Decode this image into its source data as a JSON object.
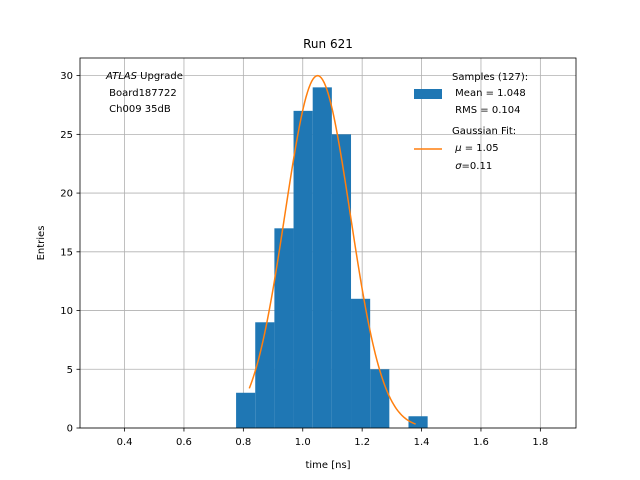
{
  "chart_data": {
    "type": "bar",
    "title": "Run 621",
    "xlabel": "time [ns]",
    "ylabel": "Entries",
    "xlim": [
      0.25,
      1.92
    ],
    "ylim": [
      0,
      31.5
    ],
    "xticks": [
      0.4,
      0.6,
      0.8,
      1.0,
      1.2,
      1.4,
      1.6,
      1.8
    ],
    "xtick_labels": [
      "0.4",
      "0.6",
      "0.8",
      "1.0",
      "1.2",
      "1.4",
      "1.6",
      "1.8"
    ],
    "yticks": [
      0,
      5,
      10,
      15,
      20,
      25,
      30
    ],
    "ytick_labels": [
      "0",
      "5",
      "10",
      "15",
      "20",
      "25",
      "30"
    ],
    "grid": true,
    "bin_width": 0.0645,
    "bins": [
      {
        "x0": 0.7755,
        "count": 3
      },
      {
        "x0": 0.84,
        "count": 9
      },
      {
        "x0": 0.9045,
        "count": 17
      },
      {
        "x0": 0.969,
        "count": 27
      },
      {
        "x0": 1.0335,
        "count": 29
      },
      {
        "x0": 1.098,
        "count": 25
      },
      {
        "x0": 1.1625,
        "count": 11
      },
      {
        "x0": 1.227,
        "count": 5
      },
      {
        "x0": 1.2915,
        "count": 0
      },
      {
        "x0": 1.356,
        "count": 1
      }
    ],
    "fit": {
      "mu": 1.05,
      "sigma": 0.11,
      "amplitude": 30.0,
      "x_range": [
        0.82,
        1.38
      ]
    },
    "series_colors": {
      "histogram": "#1f77b4",
      "fit": "#ff7f0e"
    },
    "legend": {
      "position": "top-right",
      "samples_line1": "Samples (127):",
      "samples_line2": " Mean = 1.048",
      "samples_line3": " RMS = 0.104",
      "fit_line1": "Gaussian Fit:",
      "fit_line2_prefix": " ",
      "fit_line2_symbol": "μ",
      "fit_line2_suffix": " = 1.05",
      "fit_line3_prefix": " ",
      "fit_line3_symbol": "σ",
      "fit_line3_suffix": "=0.11"
    },
    "annotation": {
      "line1_italic": "ATLAS",
      "line1_rest": " Upgrade",
      "line2": " Board187722",
      "line3": " Ch009 35dB"
    }
  }
}
